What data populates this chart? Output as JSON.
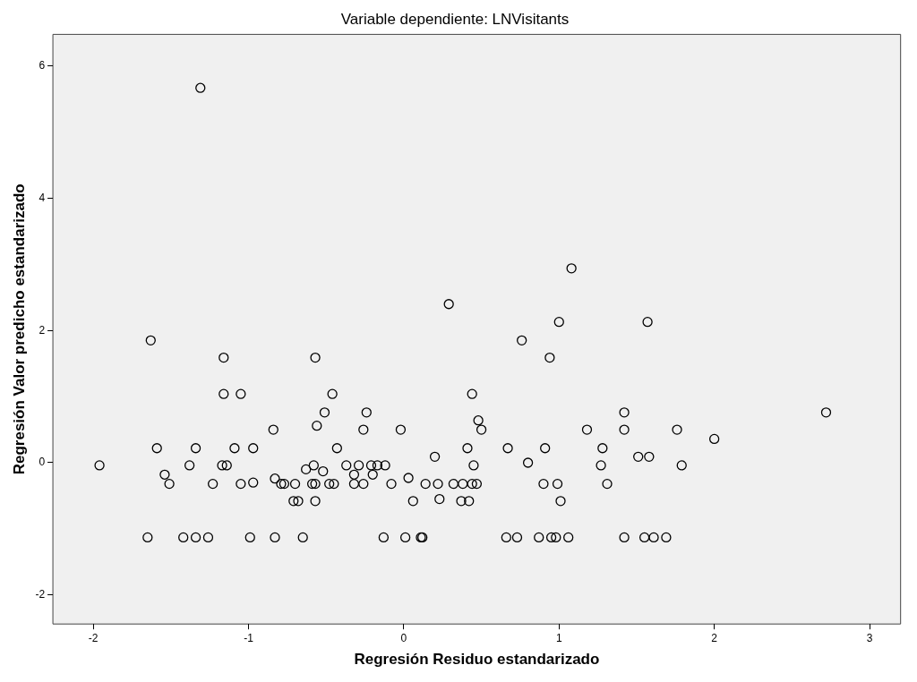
{
  "chart_data": {
    "type": "scatter",
    "title": "Variable dependiente: LNVisitants",
    "xlabel": "Regresión Residuo estandarizado",
    "ylabel": "Regresión Valor predicho estandarizado",
    "xlim": [
      -2.26,
      3.2
    ],
    "xticks": [
      -2,
      -1,
      0,
      1,
      2,
      3
    ],
    "ylim": [
      -2.44,
      6.48
    ],
    "yticks": [
      -2,
      0,
      2,
      4,
      6
    ],
    "grid": false,
    "legend": false,
    "marker": "circle",
    "series": [
      {
        "color": "#000000",
        "x": [
          -1.31,
          -1.63,
          -1.16,
          -0.57,
          -1.16,
          -1.05,
          -0.46,
          -0.51,
          -0.56,
          -0.84,
          -1.59,
          -1.34,
          -1.09,
          -0.97,
          -0.43,
          -1.96,
          -1.38,
          -1.17,
          -1.14,
          -0.58,
          -0.63,
          -0.52,
          -1.54,
          -1.51,
          -1.23,
          -1.05,
          -0.97,
          -0.83,
          -0.79,
          -0.77,
          -0.7,
          -0.59,
          -0.57,
          -0.48,
          -0.45,
          -0.71,
          -0.68,
          -0.57,
          -1.65,
          -1.42,
          -1.34,
          -1.26,
          -0.99,
          -0.83,
          -0.65,
          1.08,
          0.29,
          1.0,
          0.76,
          0.94,
          0.44,
          -0.24,
          0.48,
          1.42,
          -0.26,
          -0.02,
          0.5,
          1.18,
          1.42,
          0.41,
          0.67,
          0.91,
          1.28,
          0.2,
          0.8,
          1.27,
          0.45,
          -0.37,
          -0.29,
          -0.21,
          -0.17,
          -0.12,
          -0.32,
          -0.2,
          0.03,
          -0.32,
          -0.26,
          -0.08,
          0.14,
          0.22,
          0.32,
          0.38,
          0.44,
          0.47,
          0.9,
          0.99,
          1.31,
          0.06,
          0.23,
          0.37,
          0.42,
          1.01,
          -0.13,
          0.01,
          0.11,
          0.12,
          0.66,
          0.73,
          0.87,
          0.95,
          0.98,
          1.06,
          1.42,
          1.57,
          2.72,
          1.76,
          2.0,
          1.51,
          1.58,
          1.79,
          1.55,
          1.61,
          1.69
        ],
        "values": [
          5.67,
          1.85,
          1.59,
          1.59,
          1.04,
          1.04,
          1.04,
          0.76,
          0.56,
          0.5,
          0.22,
          0.22,
          0.22,
          0.22,
          0.22,
          -0.04,
          -0.04,
          -0.04,
          -0.04,
          -0.04,
          -0.1,
          -0.13,
          -0.18,
          -0.32,
          -0.32,
          -0.32,
          -0.3,
          -0.24,
          -0.32,
          -0.32,
          -0.32,
          -0.32,
          -0.32,
          -0.32,
          -0.32,
          -0.58,
          -0.58,
          -0.58,
          -1.13,
          -1.13,
          -1.13,
          -1.13,
          -1.13,
          -1.13,
          -1.13,
          2.94,
          2.4,
          2.13,
          1.85,
          1.59,
          1.04,
          0.76,
          0.64,
          0.76,
          0.5,
          0.5,
          0.5,
          0.5,
          0.5,
          0.22,
          0.22,
          0.22,
          0.22,
          0.09,
          0.0,
          -0.04,
          -0.04,
          -0.04,
          -0.04,
          -0.04,
          -0.04,
          -0.04,
          -0.18,
          -0.18,
          -0.23,
          -0.32,
          -0.32,
          -0.32,
          -0.32,
          -0.32,
          -0.32,
          -0.32,
          -0.32,
          -0.32,
          -0.32,
          -0.32,
          -0.32,
          -0.58,
          -0.55,
          -0.58,
          -0.58,
          -0.58,
          -1.13,
          -1.13,
          -1.13,
          -1.13,
          -1.13,
          -1.13,
          -1.13,
          -1.13,
          -1.13,
          -1.13,
          -1.13,
          2.13,
          0.76,
          0.5,
          0.36,
          0.09,
          0.09,
          -0.04,
          -1.13,
          -1.13,
          -1.13
        ]
      }
    ]
  }
}
